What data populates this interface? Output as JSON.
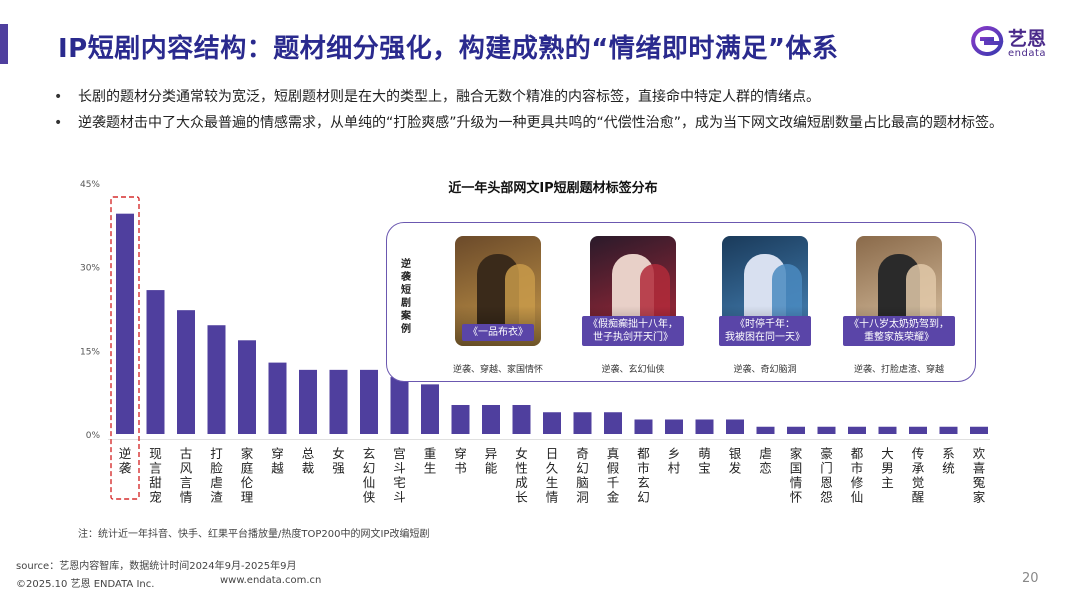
{
  "title": "IP短剧内容结构：题材细分强化，构建成熟的“情绪即时满足”体系",
  "logo": {
    "cn": "艺恩",
    "en": "endata"
  },
  "bullets": [
    "长剧的题材分类通常较为宽泛，短剧题材则是在大的类型上，融合无数个精准的内容标签，直接命中特定人群的情绪点。",
    "逆袭题材击中了大众最普遍的情感需求，从单纯的“打脸爽感”升级为一种更具共鸣的“代偿性治愈”，成为当下网文改编短剧数量占比最高的题材标签。"
  ],
  "colors": {
    "accent": "#4f3f9e",
    "bar": "#4f3f9e",
    "highlight_border": "#d62f2f",
    "grid": "#e0e0e0"
  },
  "chart_data": {
    "type": "bar",
    "title": "近一年头部网文IP短剧题材标签分布",
    "categories": [
      "逆袭",
      "现言甜宠",
      "古风言情",
      "打脸虐渣",
      "家庭伦理",
      "穿越",
      "总裁",
      "女强",
      "玄幻仙侠",
      "宫斗宅斗",
      "重生",
      "穿书",
      "异能",
      "女性成长",
      "日久生情",
      "奇幻脑洞",
      "真假千金",
      "都市玄幻",
      "乡村",
      "萌宝",
      "银发",
      "虐恋",
      "家国情怀",
      "豪门恩怨",
      "都市修仙",
      "大男主",
      "传承觉醒",
      "系统",
      "欢喜冤家"
    ],
    "values": [
      39.5,
      25.8,
      22.2,
      19.5,
      16.8,
      12.8,
      11.5,
      11.5,
      11.5,
      10.2,
      8.9,
      5.2,
      5.2,
      5.2,
      3.9,
      3.9,
      3.9,
      2.6,
      2.6,
      2.6,
      2.6,
      1.3,
      1.3,
      1.3,
      1.3,
      1.3,
      1.3,
      1.3,
      1.3
    ],
    "y_ticks": [
      "0%",
      "15%",
      "30%",
      "45%"
    ],
    "ylim": [
      0,
      45
    ],
    "grid": false,
    "legend": "none",
    "highlight_category": "逆袭"
  },
  "cases": {
    "label": "逆袭短剧案例",
    "items": [
      {
        "title": "《一品布衣》",
        "tags": "逆袭、穿越、家国情怀",
        "colors": [
          "#6b4a2a",
          "#c89a4a",
          "#3a2a1a"
        ]
      },
      {
        "title": "《假痴癫拙十八年，世子执剑开天门》",
        "tags": "逆袭、玄幻仙侠",
        "colors": [
          "#2a1a2a",
          "#b02a3a",
          "#e8d0c8"
        ]
      },
      {
        "title": "《时停千年：我被困在同一天》",
        "tags": "逆袭、奇幻脑洞",
        "colors": [
          "#1a3a5a",
          "#4a8ac0",
          "#d8e0f0"
        ]
      },
      {
        "title": "《十八岁太奶奶驾到，重整家族荣耀》",
        "tags": "逆袭、打脸虐渣、穿越",
        "colors": [
          "#8a6a4a",
          "#e0c8a8",
          "#2a2a2a"
        ]
      }
    ]
  },
  "footnote": "注：统计近一年抖音、快手、红果平台播放量/热度TOP200中的网文IP改编短剧",
  "source": "source：艺恩内容智库，数据统计时间2024年9月-2025年9月",
  "copyright": "©2025.10 艺恩 ENDATA Inc.",
  "website": "www.endata.com.cn",
  "page_number": "20"
}
